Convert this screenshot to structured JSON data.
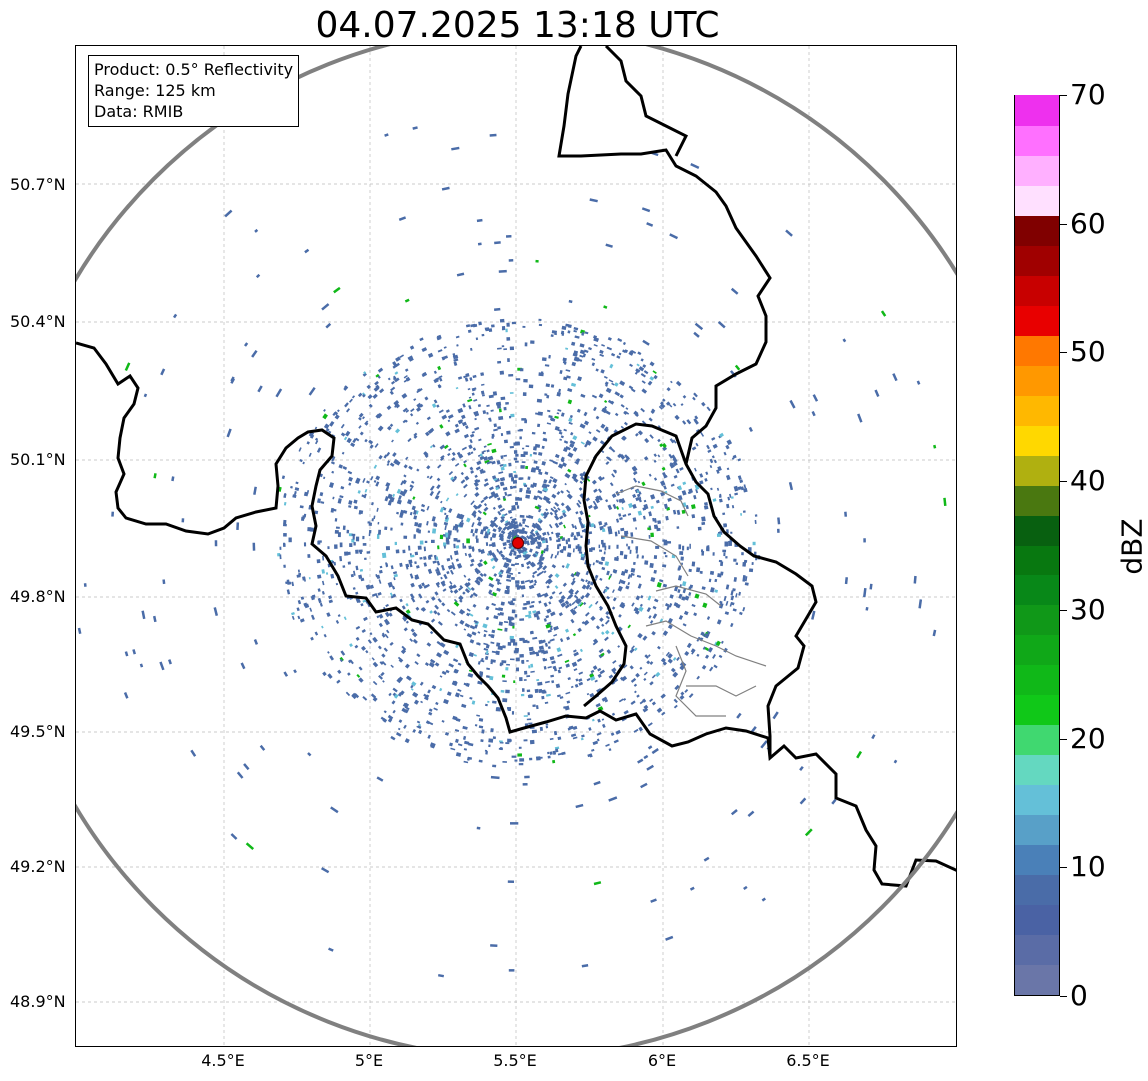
{
  "title": "04.07.2025 13:18 UTC",
  "info": {
    "product": "Product: 0.5° Reflectivity",
    "range": "Range: 125 km",
    "data": "Data: RMIB"
  },
  "lat_labels": [
    "50.7°N",
    "50.4°N",
    "50.1°N",
    "49.8°N",
    "49.5°N",
    "49.2°N",
    "48.9°N"
  ],
  "lon_labels": [
    "4.5°E",
    "5°E",
    "5.5°E",
    "6°E",
    "6.5°E"
  ],
  "colorbar": {
    "unit": "dBZ",
    "min": 0,
    "max": 70,
    "tick_labels": [
      "0",
      "10",
      "20",
      "30",
      "40",
      "50",
      "60",
      "70"
    ],
    "colors": [
      "#6a76a8",
      "#5a6ca6",
      "#4a62a4",
      "#4a6ca8",
      "#4a80b8",
      "#58a0c8",
      "#64c0d8",
      "#64d8c0",
      "#40d870",
      "#10c818",
      "#10b818",
      "#10a818",
      "#109818",
      "#088818",
      "#087810",
      "#086010",
      "#4a7810",
      "#b0b010",
      "#ffd800",
      "#ffb800",
      "#ff9800",
      "#ff7800",
      "#e80000",
      "#c80000",
      "#a00000",
      "#800000",
      "#ffe0ff",
      "#ffb0ff",
      "#ff70ff",
      "#ee30ee"
    ]
  },
  "colors": {
    "radar_range_ring": "#808080",
    "borders": "#000000",
    "provincial_borders": "#808080",
    "radar_site": "#e00000",
    "echo_weak": "#4a6ca8",
    "echo_light": "#64c0d8",
    "echo_moderate": "#10b818"
  }
}
